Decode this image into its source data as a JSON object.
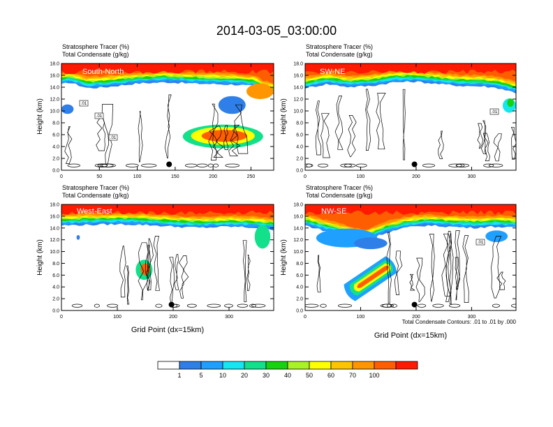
{
  "figure_title": "2014-03-05_03:00:00",
  "footnote": "Total Condensate Contours: .01 to .01 by .000",
  "colors": {
    "levels": [
      "#ffffff",
      "#2f7fe8",
      "#1fa0ff",
      "#16e6f0",
      "#12e08a",
      "#17d20e",
      "#a8f226",
      "#ffff00",
      "#ffc400",
      "#ff9600",
      "#ff5e00",
      "#ff1a00"
    ],
    "contour": "#000000",
    "marker": "#000000"
  },
  "colorbar": {
    "labels": [
      "1",
      "5",
      "10",
      "20",
      "30",
      "40",
      "50",
      "60",
      "70",
      "100"
    ]
  },
  "chart_data": [
    {
      "type": "heatmap",
      "label": "South-North",
      "title_line1": "Stratosphere Tracer   (%)",
      "title_line2": "Total Condensate   (g/kg)",
      "xlabel": "",
      "ylabel": "Height (km)",
      "xlim": [
        0,
        280
      ],
      "ylim": [
        0,
        18
      ],
      "xticks": [
        0,
        50,
        100,
        150,
        200,
        250
      ],
      "yticks": [
        0.0,
        2.0,
        4.0,
        6.0,
        8.0,
        10.0,
        12.0,
        14.0,
        16.0,
        18.0
      ],
      "ytick_labels": [
        "0.0",
        "2.0",
        "4.0",
        "6.0",
        "8.0",
        "10.0",
        "12.0",
        "14.0",
        "16.0",
        "18.0"
      ],
      "marker_x": 142,
      "contour_labels": [
        ".01",
        ".01",
        ".01"
      ],
      "tracer_layer": [
        [
          0,
          15.2
        ],
        [
          10,
          15.6
        ],
        [
          35,
          14.6
        ],
        [
          60,
          14.8
        ],
        [
          100,
          15.4
        ],
        [
          140,
          15.6
        ],
        [
          170,
          15.4
        ],
        [
          200,
          15.3
        ],
        [
          230,
          15.2
        ],
        [
          255,
          14.9
        ],
        [
          265,
          14.0
        ],
        [
          280,
          13.6
        ]
      ],
      "blobs": [
        {
          "x": 262,
          "y": 13.3,
          "rx": 18,
          "ry": 1.3,
          "level": 9
        },
        {
          "x": 8,
          "y": 10.3,
          "rx": 8,
          "ry": 0.8,
          "level": 1
        },
        {
          "x": 213,
          "y": 5.7,
          "rx": 53,
          "ry": 2.0,
          "level": 4
        },
        {
          "x": 213,
          "y": 5.8,
          "rx": 42,
          "ry": 1.5,
          "level": 7
        },
        {
          "x": 215,
          "y": 5.8,
          "rx": 30,
          "ry": 1.0,
          "level": 10
        },
        {
          "x": 225,
          "y": 11.0,
          "rx": 18,
          "ry": 1.5,
          "level": 1
        }
      ]
    },
    {
      "type": "heatmap",
      "label": "SW-NE",
      "title_line1": "Stratosphere Tracer   (%)",
      "title_line2": "Total Condensate   (g/kg)",
      "xlabel": "",
      "ylabel": "Height (km)",
      "xlim": [
        0,
        380
      ],
      "ylim": [
        0,
        18
      ],
      "xticks": [
        0,
        100,
        200,
        300
      ],
      "yticks": [
        0.0,
        2.0,
        4.0,
        6.0,
        8.0,
        10.0,
        12.0,
        14.0,
        16.0,
        18.0
      ],
      "ytick_labels": [
        "0.0",
        "2.0",
        "4.0",
        "6.0",
        "8.0",
        "10.0",
        "12.0",
        "14.0",
        "16.0",
        "18.0"
      ],
      "marker_x": 197,
      "contour_labels": [
        ".01"
      ],
      "tracer_layer": [
        [
          0,
          14.6
        ],
        [
          40,
          15.3
        ],
        [
          80,
          14.8
        ],
        [
          120,
          15.0
        ],
        [
          160,
          15.6
        ],
        [
          200,
          15.7
        ],
        [
          240,
          15.3
        ],
        [
          280,
          15.0
        ],
        [
          320,
          14.9
        ],
        [
          350,
          14.6
        ],
        [
          380,
          13.8
        ]
      ],
      "blobs": [
        {
          "x": 368,
          "y": 10.9,
          "rx": 12,
          "ry": 1.2,
          "level": 3
        },
        {
          "x": 370,
          "y": 11.4,
          "rx": 6,
          "ry": 0.7,
          "level": 5
        }
      ]
    },
    {
      "type": "heatmap",
      "label": "West-East",
      "title_line1": "Stratosphere Tracer   (%)",
      "title_line2": "Total Condensate   (g/kg)",
      "xlabel": "Grid Point (dx=15km)",
      "ylabel": "Height (km)",
      "xlim": [
        0,
        380
      ],
      "ylim": [
        0,
        18
      ],
      "xticks": [
        0,
        100,
        200,
        300
      ],
      "yticks": [
        0.0,
        2.0,
        4.0,
        6.0,
        8.0,
        10.0,
        12.0,
        14.0,
        16.0,
        18.0
      ],
      "ytick_labels": [
        "0.0",
        "2.0",
        "4.0",
        "6.0",
        "8.0",
        "10.0",
        "12.0",
        "14.0",
        "16.0",
        "18.0"
      ],
      "marker_x": 197,
      "contour_labels": [],
      "tracer_layer": [
        [
          0,
          15.2
        ],
        [
          50,
          15.3
        ],
        [
          100,
          15.4
        ],
        [
          150,
          15.3
        ],
        [
          200,
          15.0
        ],
        [
          250,
          14.8
        ],
        [
          300,
          15.0
        ],
        [
          350,
          14.8
        ],
        [
          380,
          14.5
        ]
      ],
      "blobs": [
        {
          "x": 148,
          "y": 6.9,
          "rx": 15,
          "ry": 1.7,
          "level": 4
        },
        {
          "x": 150,
          "y": 7.0,
          "rx": 8,
          "ry": 1.0,
          "level": 10
        },
        {
          "x": 360,
          "y": 12.5,
          "rx": 14,
          "ry": 2.0,
          "level": 4
        },
        {
          "x": 30,
          "y": 12.4,
          "rx": 3,
          "ry": 0.4,
          "level": 1
        }
      ]
    },
    {
      "type": "heatmap",
      "label": "NW-SE",
      "title_line1": "Stratosphere Tracer   (%)",
      "title_line2": "Total Condensate   (g/kg)",
      "xlabel": "Grid Point (dx=15km)",
      "ylabel": "Height (km)",
      "xlim": [
        0,
        380
      ],
      "ylim": [
        0,
        18
      ],
      "xticks": [
        0,
        100,
        200,
        300
      ],
      "yticks": [
        0.0,
        2.0,
        4.0,
        6.0,
        8.0,
        10.0,
        12.0,
        14.0,
        16.0,
        18.0
      ],
      "ytick_labels": [
        "0.0",
        "2.0",
        "4.0",
        "6.0",
        "8.0",
        "10.0",
        "12.0",
        "14.0",
        "16.0",
        "18.0"
      ],
      "marker_x": 197,
      "contour_labels": [
        ".01"
      ],
      "tracer_layer": [
        [
          0,
          15.2
        ],
        [
          40,
          14.2
        ],
        [
          80,
          13.2
        ],
        [
          110,
          12.6
        ],
        [
          140,
          13.8
        ],
        [
          180,
          14.8
        ],
        [
          220,
          15.2
        ],
        [
          260,
          15.0
        ],
        [
          300,
          14.8
        ],
        [
          340,
          15.0
        ],
        [
          380,
          14.8
        ]
      ],
      "blobs": [
        {
          "x": 75,
          "y": 12.3,
          "rx": 55,
          "ry": 1.6,
          "level": 2
        },
        {
          "x": 118,
          "y": 11.4,
          "rx": 30,
          "ry": 1.0,
          "level": 1
        },
        {
          "x": 345,
          "y": 12.6,
          "rx": 20,
          "ry": 1.0,
          "level": 2
        }
      ],
      "slant_feature": {
        "from": [
          80,
          3.0
        ],
        "to": [
          155,
          7.8
        ]
      }
    }
  ]
}
